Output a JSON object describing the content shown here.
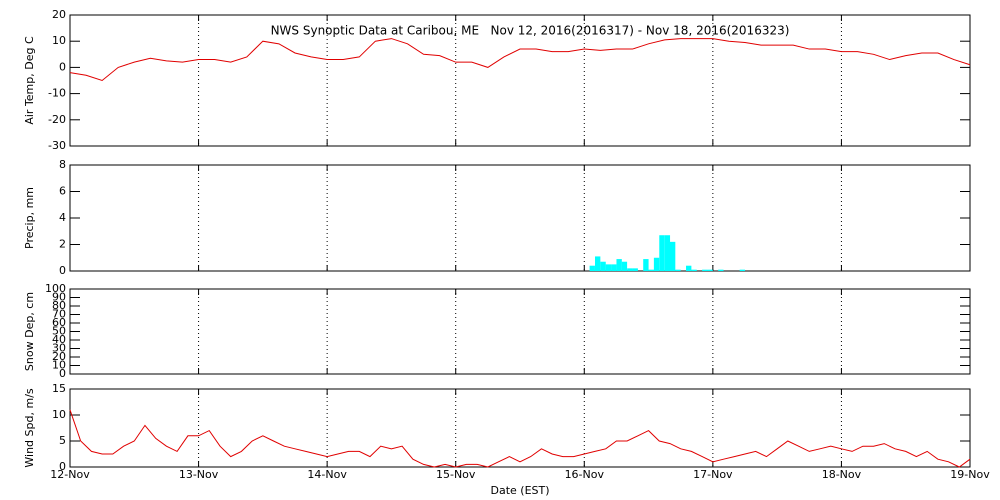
{
  "chart_data": [
    {
      "type": "line",
      "title": "NWS Synoptic Data at Caribou, ME   Nov 12, 2016(2016317) - Nov 18, 2016(2016323)",
      "ylabel": "Air Temp, Deg C",
      "color": "#e00000",
      "xlim": [
        0,
        7
      ],
      "xticks": [
        0,
        1,
        2,
        3,
        4,
        5,
        6,
        7
      ],
      "grid": true,
      "ylim": [
        -30,
        20
      ],
      "yticks": [
        -30,
        -20,
        -10,
        0,
        10,
        20
      ],
      "x": [
        0,
        0.125,
        0.25,
        0.375,
        0.5,
        0.625,
        0.75,
        0.875,
        1,
        1.125,
        1.25,
        1.375,
        1.5,
        1.625,
        1.75,
        1.875,
        2,
        2.125,
        2.25,
        2.375,
        2.5,
        2.625,
        2.75,
        2.875,
        3,
        3.125,
        3.25,
        3.375,
        3.5,
        3.625,
        3.75,
        3.875,
        4,
        4.125,
        4.25,
        4.375,
        4.5,
        4.625,
        4.75,
        4.875,
        5,
        5.125,
        5.25,
        5.375,
        5.5,
        5.625,
        5.75,
        5.875,
        6,
        6.125,
        6.25,
        6.375,
        6.5,
        6.625,
        6.75,
        6.875,
        7
      ],
      "values": [
        -2,
        -3,
        -5,
        0,
        2,
        3.5,
        2.5,
        2,
        3,
        3,
        2,
        4,
        10,
        9,
        5.5,
        4,
        3,
        3,
        4,
        10,
        11,
        9,
        5,
        4.5,
        2,
        2,
        0,
        4,
        7,
        7,
        6,
        6,
        7,
        6.5,
        7,
        7,
        9,
        10.5,
        11,
        11,
        11,
        10,
        9.5,
        8.5,
        8.5,
        8.5,
        7,
        7,
        6,
        6,
        5,
        3,
        4.5,
        5.5,
        5.5,
        3,
        1
      ]
    },
    {
      "type": "bar",
      "ylabel": "Precip, mm",
      "color": "#00ffff",
      "xlim": [
        0,
        7
      ],
      "xticks": [
        0,
        1,
        2,
        3,
        4,
        5,
        6,
        7
      ],
      "grid": true,
      "ylim": [
        0,
        8
      ],
      "yticks": [
        0,
        2,
        4,
        6,
        8
      ],
      "x": [
        4.083,
        4.125,
        4.167,
        4.208,
        4.25,
        4.292,
        4.333,
        4.375,
        4.417,
        4.5,
        4.542,
        4.583,
        4.625,
        4.667,
        4.708,
        4.75,
        4.833,
        4.875,
        4.958,
        5.0,
        5.083,
        5.25
      ],
      "values": [
        0.4,
        1.1,
        0.7,
        0.5,
        0.5,
        0.9,
        0.7,
        0.2,
        0.2,
        0.9,
        0.1,
        1.0,
        2.7,
        2.7,
        2.2,
        0.1,
        0.4,
        0.1,
        0.1,
        0.1,
        0.1,
        0.1
      ]
    },
    {
      "type": "line",
      "ylabel": "Snow Dep, cm",
      "xlim": [
        0,
        7
      ],
      "xticks": [
        0,
        1,
        2,
        3,
        4,
        5,
        6,
        7
      ],
      "grid": true,
      "ylim": [
        0,
        100
      ],
      "yticks": [
        0,
        10,
        20,
        30,
        40,
        50,
        60,
        70,
        80,
        90,
        100
      ]
    },
    {
      "type": "line",
      "ylabel": "Wind Spd, m/s",
      "xlabel": "Date (EST)",
      "color": "#e00000",
      "xlim": [
        0,
        7
      ],
      "xticks": [
        {
          "value": 0,
          "label": "12-Nov"
        },
        {
          "value": 1,
          "label": "13-Nov"
        },
        {
          "value": 2,
          "label": "14-Nov"
        },
        {
          "value": 3,
          "label": "15-Nov"
        },
        {
          "value": 4,
          "label": "16-Nov"
        },
        {
          "value": 5,
          "label": "17-Nov"
        },
        {
          "value": 6,
          "label": "18-Nov"
        },
        {
          "value": 7,
          "label": "19-Nov"
        }
      ],
      "grid": true,
      "ylim": [
        0,
        15
      ],
      "yticks": [
        0,
        5,
        10,
        15
      ],
      "x": [
        0,
        0.083,
        0.167,
        0.25,
        0.333,
        0.417,
        0.5,
        0.583,
        0.667,
        0.75,
        0.833,
        0.917,
        1,
        1.083,
        1.167,
        1.25,
        1.333,
        1.417,
        1.5,
        1.583,
        1.667,
        1.75,
        1.833,
        1.917,
        2,
        2.083,
        2.167,
        2.25,
        2.333,
        2.417,
        2.5,
        2.583,
        2.667,
        2.75,
        2.833,
        2.917,
        3,
        3.083,
        3.167,
        3.25,
        3.333,
        3.417,
        3.5,
        3.583,
        3.667,
        3.75,
        3.833,
        3.917,
        4,
        4.083,
        4.167,
        4.25,
        4.333,
        4.417,
        4.5,
        4.583,
        4.667,
        4.75,
        4.833,
        4.917,
        5,
        5.083,
        5.167,
        5.25,
        5.333,
        5.417,
        5.5,
        5.583,
        5.667,
        5.75,
        5.833,
        5.917,
        6,
        6.083,
        6.167,
        6.25,
        6.333,
        6.417,
        6.5,
        6.583,
        6.667,
        6.75,
        6.833,
        6.917,
        7
      ],
      "values": [
        11,
        5,
        3,
        2.5,
        2.5,
        4,
        5,
        8,
        5.5,
        4,
        3,
        6,
        6,
        7,
        4,
        2,
        3,
        5,
        6,
        5,
        4,
        3.5,
        3,
        2.5,
        2,
        2.5,
        3,
        3,
        2,
        4,
        3.5,
        4,
        1.5,
        0.5,
        0,
        0.5,
        0,
        0.5,
        0.5,
        0,
        1,
        2,
        1,
        2,
        3.5,
        2.5,
        2,
        2,
        2.5,
        3,
        3.5,
        5,
        5,
        6,
        7,
        5,
        4.5,
        3.5,
        3,
        2,
        1,
        1.5,
        2,
        2.5,
        3,
        2,
        3.5,
        5,
        4,
        3,
        3.5,
        4,
        3.5,
        3,
        4,
        4,
        4.5,
        3.5,
        3,
        2,
        3,
        1.5,
        1,
        0,
        1.5
      ]
    }
  ]
}
